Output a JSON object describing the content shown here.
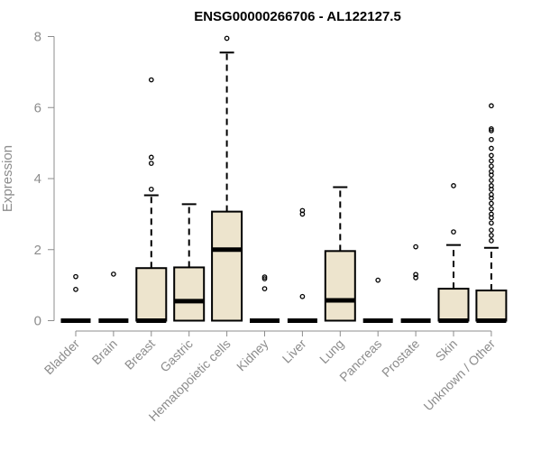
{
  "chart_data": {
    "type": "box",
    "title": "ENSG00000266706 - AL122127.5",
    "xlabel": "",
    "ylabel": "Expression",
    "ylim": [
      0,
      8
    ],
    "yticks": [
      "0",
      "2",
      "4",
      "6",
      "8"
    ],
    "box_fill": "#ede4cd",
    "median_color": "#000000",
    "categories": [
      "Bladder",
      "Brain",
      "Breast",
      "Gastric",
      "Hematopoietic cells",
      "Kidney",
      "Liver",
      "Lung",
      "Pancreas",
      "Prostate",
      "Skin",
      "Unknown / Other"
    ],
    "boxes": [
      {
        "q1": 0,
        "median": 0,
        "q3": 0,
        "whisker_low": 0,
        "whisker_high": 0,
        "outliers": [
          0.88,
          1.24
        ]
      },
      {
        "q1": 0,
        "median": 0,
        "q3": 0,
        "whisker_low": 0,
        "whisker_high": 0,
        "outliers": [
          1.31
        ]
      },
      {
        "q1": 0,
        "median": 0,
        "q3": 1.48,
        "whisker_low": 0,
        "whisker_high": 3.53,
        "outliers": [
          3.7,
          4.43,
          4.6,
          6.78
        ]
      },
      {
        "q1": 0,
        "median": 0.55,
        "q3": 1.5,
        "whisker_low": 0,
        "whisker_high": 3.28,
        "outliers": []
      },
      {
        "q1": 0,
        "median": 2.0,
        "q3": 3.07,
        "whisker_low": 0,
        "whisker_high": 7.55,
        "outliers": [
          7.95
        ]
      },
      {
        "q1": 0,
        "median": 0,
        "q3": 0,
        "whisker_low": 0,
        "whisker_high": 0,
        "outliers": [
          0.9,
          1.18,
          1.23
        ]
      },
      {
        "q1": 0,
        "median": 0,
        "q3": 0,
        "whisker_low": 0,
        "whisker_high": 0,
        "outliers": [
          0.68,
          3.0,
          3.1
        ]
      },
      {
        "q1": 0,
        "median": 0.57,
        "q3": 1.96,
        "whisker_low": 0,
        "whisker_high": 3.76,
        "outliers": []
      },
      {
        "q1": 0,
        "median": 0,
        "q3": 0,
        "whisker_low": 0,
        "whisker_high": 0,
        "outliers": [
          1.14
        ]
      },
      {
        "q1": 0,
        "median": 0,
        "q3": 0,
        "whisker_low": 0,
        "whisker_high": 0,
        "outliers": [
          1.21,
          1.3,
          2.08
        ]
      },
      {
        "q1": 0,
        "median": 0,
        "q3": 0.9,
        "whisker_low": 0,
        "whisker_high": 2.13,
        "outliers": [
          2.5,
          3.8
        ]
      },
      {
        "q1": 0,
        "median": 0,
        "q3": 0.85,
        "whisker_low": 0,
        "whisker_high": 2.05,
        "outliers": [
          2.25,
          2.4,
          2.55,
          2.75,
          2.9,
          3.0,
          3.15,
          3.3,
          3.45,
          3.55,
          3.7,
          3.8,
          3.95,
          4.1,
          4.2,
          4.35,
          4.5,
          4.65,
          4.85,
          5.1,
          5.35,
          5.4,
          6.05
        ]
      }
    ]
  }
}
